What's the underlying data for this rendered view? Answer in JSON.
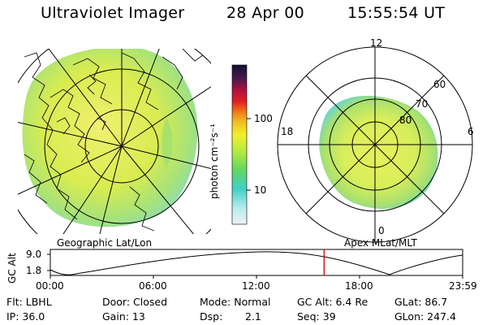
{
  "header": {
    "title": "Ultraviolet Imager",
    "date": "28 Apr 00",
    "time": "15:55:54 UT"
  },
  "left_panel": {
    "caption": "Geographic Lat/Lon"
  },
  "right_panel": {
    "caption": "Apex MLat/MLT",
    "mlt_labels": [
      "12",
      "18",
      "6",
      "0"
    ],
    "lat_labels": [
      "60",
      "70",
      "80"
    ]
  },
  "colorbar": {
    "unit_label": "photon cm⁻²s⁻¹",
    "ticks": [
      "100",
      "10"
    ]
  },
  "altitude_strip": {
    "axis_label": "GC Alt",
    "y_ticks": [
      "9.0",
      "1.8"
    ],
    "x_ticks": [
      "00:00",
      "06:00",
      "12:00",
      "18:00",
      "23:59"
    ],
    "current_time_fraction": 0.664,
    "marker_color": "#cc0000"
  },
  "info": {
    "flt": "Flt: LBHL",
    "ip": "IP: 36.0",
    "door": "Door: Closed",
    "gain": "Gain: 13",
    "mode": "Mode: Normal",
    "dsp_label": "Dsp:",
    "dsp_value": "2.1",
    "gc_alt": "GC Alt: 6.4 Re",
    "seq": "Seq: 39",
    "glat": "GLat: 86.7",
    "glon": "GLon: 247.4"
  }
}
